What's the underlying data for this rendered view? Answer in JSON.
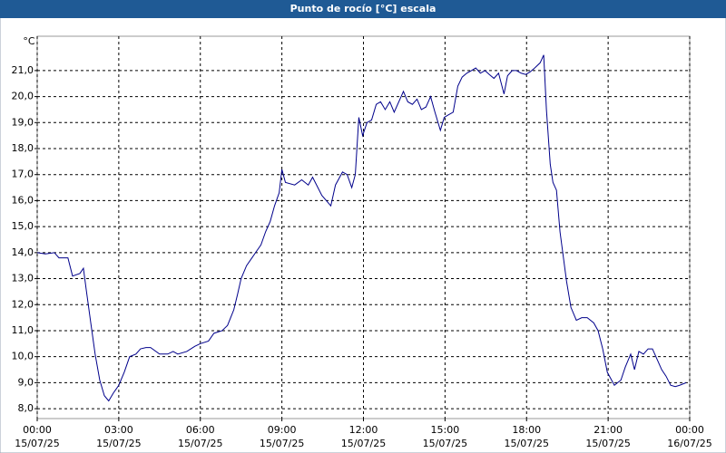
{
  "chart_data": {
    "type": "line",
    "title": "Punto de rocío [°C] escala",
    "y_label": "°C",
    "series": [
      {
        "name": "Punto de rocío",
        "color": "#00008b",
        "x": [
          0,
          0.3,
          0.63,
          0.8,
          1.13,
          1.3,
          1.57,
          1.7,
          1.8,
          1.97,
          2.13,
          2.3,
          2.47,
          2.63,
          2.8,
          3,
          3.2,
          3.4,
          3.63,
          3.8,
          4,
          4.17,
          4.5,
          4.8,
          5,
          5.17,
          5.5,
          5.8,
          6,
          6.3,
          6.5,
          6.8,
          7,
          7.23,
          7.37,
          7.5,
          7.7,
          7.9,
          8.03,
          8.23,
          8.4,
          8.57,
          8.73,
          8.9,
          9,
          9.13,
          9.47,
          9.73,
          9.97,
          10.13,
          10.47,
          10.8,
          10.97,
          11.23,
          11.4,
          11.57,
          11.7,
          11.83,
          11.97,
          12.13,
          12.3,
          12.47,
          12.63,
          12.8,
          12.97,
          13.13,
          13.47,
          13.63,
          13.8,
          13.97,
          14.13,
          14.3,
          14.47,
          14.63,
          14.83,
          14.97,
          15.13,
          15.3,
          15.47,
          15.63,
          15.8,
          15.97,
          16.13,
          16.3,
          16.47,
          16.63,
          16.8,
          16.97,
          17.17,
          17.3,
          17.47,
          17.63,
          17.8,
          17.97,
          18.13,
          18.3,
          18.5,
          18.63,
          18.73,
          18.87,
          18.97,
          19.1,
          19.23,
          19.47,
          19.63,
          19.83,
          20.03,
          20.23,
          20.47,
          20.63,
          20.8,
          20.97,
          21.23,
          21.47,
          21.63,
          21.83,
          21.97,
          22.13,
          22.3,
          22.47,
          22.63,
          22.8,
          22.97,
          23.13,
          23.3,
          23.47,
          23.63,
          23.87
        ],
        "values": [
          14.0,
          13.95,
          14.0,
          13.8,
          13.8,
          13.1,
          13.2,
          13.4,
          12.6,
          11.3,
          10.1,
          9.1,
          8.5,
          8.3,
          8.6,
          8.9,
          9.4,
          10.0,
          10.1,
          10.3,
          10.35,
          10.35,
          10.1,
          10.1,
          10.2,
          10.1,
          10.2,
          10.4,
          10.5,
          10.6,
          10.9,
          11.0,
          11.2,
          11.8,
          12.4,
          13.0,
          13.5,
          13.8,
          14.0,
          14.3,
          14.8,
          15.2,
          15.8,
          16.3,
          17.2,
          16.7,
          16.6,
          16.8,
          16.6,
          16.9,
          16.2,
          15.8,
          16.6,
          17.1,
          17.0,
          16.5,
          17.0,
          19.2,
          18.5,
          19.0,
          19.1,
          19.7,
          19.8,
          19.5,
          19.8,
          19.4,
          20.2,
          19.8,
          19.7,
          19.9,
          19.5,
          19.6,
          20.0,
          19.4,
          18.7,
          19.2,
          19.3,
          19.4,
          20.4,
          20.75,
          20.9,
          21.0,
          21.1,
          20.9,
          21.0,
          20.85,
          20.7,
          20.9,
          20.1,
          20.8,
          21.0,
          21.0,
          20.9,
          20.85,
          20.95,
          21.1,
          21.3,
          21.6,
          19.5,
          17.4,
          16.7,
          16.4,
          14.8,
          12.9,
          11.9,
          11.4,
          11.5,
          11.5,
          11.3,
          11.0,
          10.3,
          9.4,
          8.9,
          9.1,
          9.6,
          10.1,
          9.5,
          10.2,
          10.1,
          10.3,
          10.3,
          9.9,
          9.5,
          9.25,
          8.9,
          8.85,
          8.9,
          9.0
        ]
      }
    ],
    "xlim": [
      0,
      24
    ],
    "ylim": [
      7.62,
      22.32
    ],
    "xticks": [
      {
        "value": 0,
        "label": "00:00",
        "date": "15/07/25"
      },
      {
        "value": 3,
        "label": "03:00",
        "date": "15/07/25"
      },
      {
        "value": 6,
        "label": "06:00",
        "date": "15/07/25"
      },
      {
        "value": 9,
        "label": "09:00",
        "date": "15/07/25"
      },
      {
        "value": 12,
        "label": "12:00",
        "date": "15/07/25"
      },
      {
        "value": 15,
        "label": "15:00",
        "date": "15/07/25"
      },
      {
        "value": 18,
        "label": "18:00",
        "date": "15/07/25"
      },
      {
        "value": 21,
        "label": "21:00",
        "date": "15/07/25"
      },
      {
        "value": 24,
        "label": "00:00",
        "date": "16/07/25"
      }
    ],
    "yticks": [
      {
        "value": 8,
        "label": "8,0"
      },
      {
        "value": 9,
        "label": "9,0"
      },
      {
        "value": 10,
        "label": "10,0"
      },
      {
        "value": 11,
        "label": "11,0"
      },
      {
        "value": 12,
        "label": "12,0"
      },
      {
        "value": 13,
        "label": "13,0"
      },
      {
        "value": 14,
        "label": "14,0"
      },
      {
        "value": 15,
        "label": "15,0"
      },
      {
        "value": 16,
        "label": "16,0"
      },
      {
        "value": 17,
        "label": "17,0"
      },
      {
        "value": 18,
        "label": "18,0"
      },
      {
        "value": 19,
        "label": "19,0"
      },
      {
        "value": 20,
        "label": "20,0"
      },
      {
        "value": 21,
        "label": "21,0"
      }
    ],
    "grid": true
  }
}
